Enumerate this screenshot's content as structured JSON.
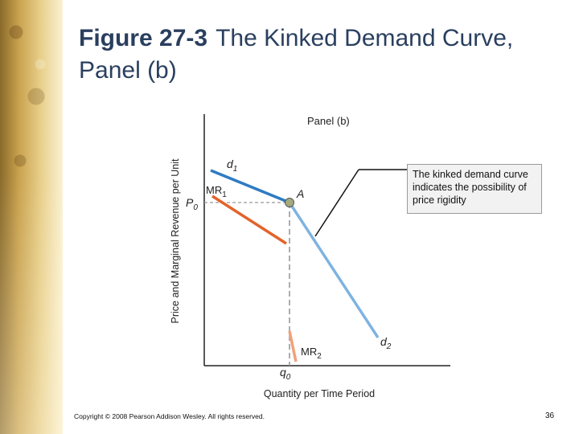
{
  "title": {
    "figure_label": "Figure 27-3",
    "text": "The Kinked Demand Curve, Panel (b)"
  },
  "diagram": {
    "panel_label": "Panel (b)",
    "y_axis_label": "Price and Marginal Revenue per Unit",
    "x_axis_label": "Quantity per Time Period",
    "labels": {
      "d": "d",
      "d1_sub": "1",
      "mr": "MR",
      "mr1_sub": "1",
      "p": "P",
      "p0_sub": "0",
      "a": "A",
      "d2_sub": "2",
      "mr2_sub": "2",
      "q": "q",
      "q0_sub": "0"
    },
    "colors": {
      "d1": "#2e7bc4",
      "d2": "#7fb3e0",
      "mr1": "#e2632b",
      "mr2": "#f0a27a",
      "point_a": "#a5aa7f"
    }
  },
  "callout": "The kinked demand curve indicates the possibility of price rigidity",
  "footer": {
    "copyright": "Copyright © 2008 Pearson Addison Wesley. All rights reserved.",
    "page": "36"
  }
}
